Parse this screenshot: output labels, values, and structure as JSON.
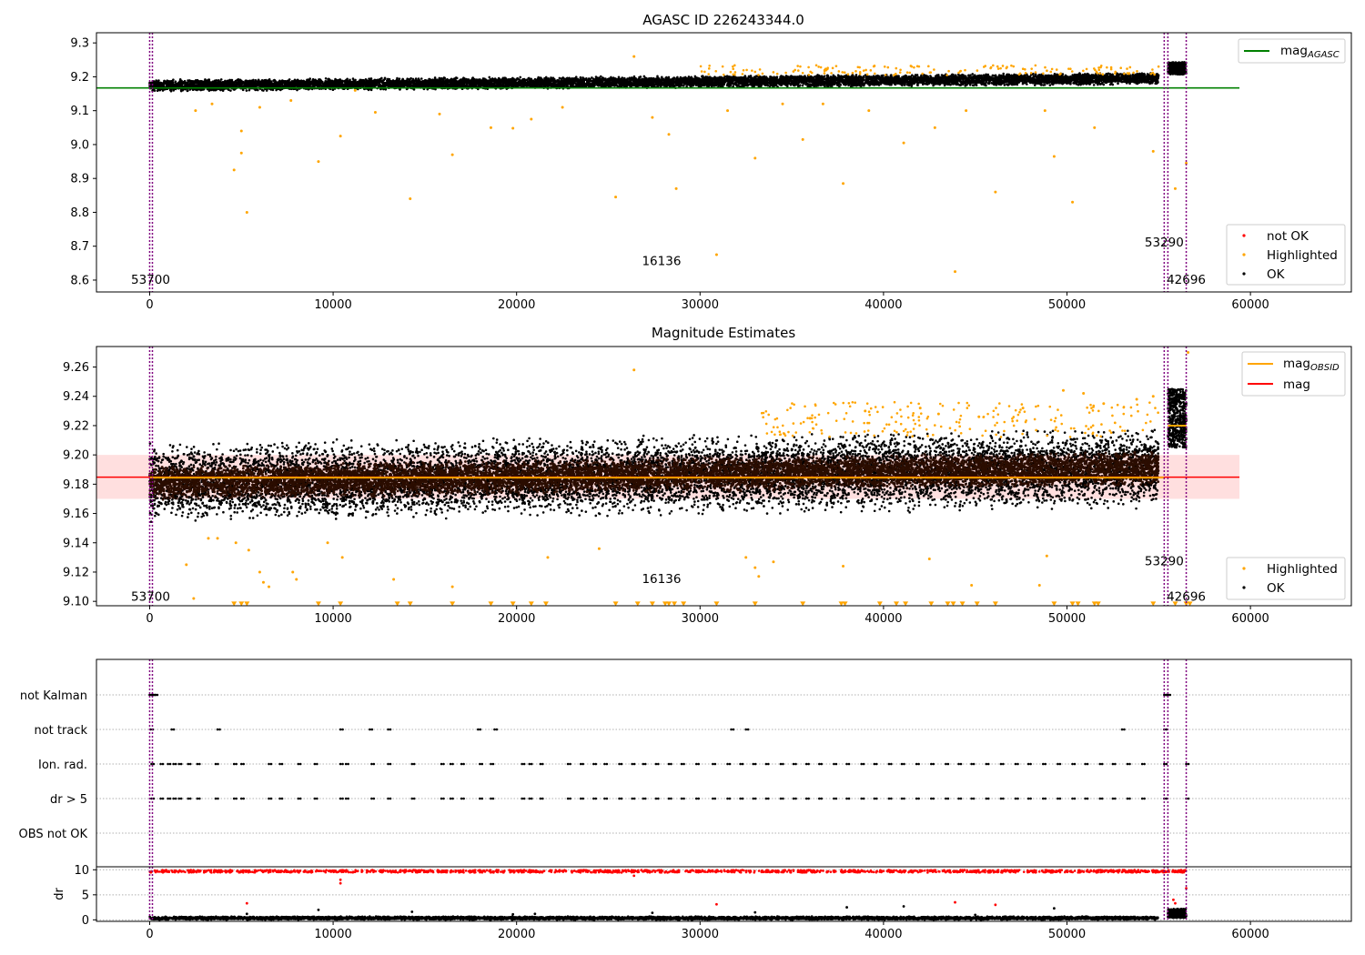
{
  "chart_data": [
    {
      "type": "scatter",
      "title": "AGASC ID 226243344.0",
      "xlim": [
        -2900,
        65500
      ],
      "ylim": [
        8.565,
        9.33
      ],
      "xticks": [
        0,
        10000,
        20000,
        30000,
        40000,
        50000,
        60000
      ],
      "xtick_labels": [
        "0",
        "10000",
        "20000",
        "30000",
        "40000",
        "50000",
        "60000"
      ],
      "yticks": [
        8.6,
        8.7,
        8.8,
        8.9,
        9.0,
        9.1,
        9.2,
        9.3
      ],
      "ytick_labels": [
        "8.6",
        "8.7",
        "8.8",
        "8.9",
        "9.0",
        "9.1",
        "9.2",
        "9.3"
      ],
      "reference_line": {
        "name": "mag_AGASC",
        "y": 9.167,
        "x": [
          -2900,
          59400
        ],
        "color": "#008000"
      },
      "vlines": [
        0,
        150,
        55300,
        55500,
        56500
      ],
      "dense_band": {
        "series": "OK",
        "start": [
          0,
          9.174
        ],
        "end": [
          55000,
          9.195
        ],
        "half_width": 0.018
      },
      "late_cluster": {
        "x": [
          55500,
          56500
        ],
        "y": 9.225,
        "half_width": 0.018
      },
      "series": [
        {
          "name": "not OK",
          "color": "#ff0000",
          "points": []
        },
        {
          "name": "Highlighted",
          "color": "#ffa500",
          "points": [
            [
              4600,
              8.925
            ],
            [
              5000,
              9.04
            ],
            [
              5000,
              8.975
            ],
            [
              5300,
              8.8
            ],
            [
              9200,
              8.95
            ],
            [
              10400,
              9.025
            ],
            [
              14200,
              8.84
            ],
            [
              16500,
              8.97
            ],
            [
              18600,
              9.05
            ],
            [
              19800,
              9.048
            ],
            [
              25400,
              8.845
            ],
            [
              26400,
              9.26
            ],
            [
              28300,
              9.03
            ],
            [
              28700,
              8.87
            ],
            [
              30900,
              8.675
            ],
            [
              33000,
              8.96
            ],
            [
              35600,
              9.015
            ],
            [
              37800,
              8.885
            ],
            [
              41100,
              9.005
            ],
            [
              43900,
              8.625
            ],
            [
              46100,
              8.86
            ],
            [
              49300,
              8.965
            ],
            [
              50300,
              8.83
            ],
            [
              54700,
              8.98
            ],
            [
              55900,
              8.87
            ],
            [
              56500,
              8.945
            ],
            [
              3400,
              9.12
            ],
            [
              6000,
              9.11
            ],
            [
              12300,
              9.095
            ],
            [
              20800,
              9.075
            ],
            [
              27400,
              9.08
            ],
            [
              39200,
              9.1
            ],
            [
              44500,
              9.1
            ],
            [
              51500,
              9.05
            ],
            [
              2500,
              9.1
            ],
            [
              7700,
              9.13
            ],
            [
              11200,
              9.16
            ],
            [
              15800,
              9.09
            ],
            [
              22500,
              9.11
            ],
            [
              31500,
              9.1
            ],
            [
              34500,
              9.12
            ],
            [
              36700,
              9.12
            ],
            [
              42800,
              9.05
            ],
            [
              48800,
              9.1
            ]
          ]
        },
        {
          "name": "OK",
          "color": "#000000",
          "points": []
        }
      ],
      "legend": [
        {
          "label": "mag",
          "sub": "AGASC",
          "kind": "line",
          "color": "#008000",
          "placement": "top-right"
        },
        {
          "label": "not OK",
          "kind": "dot",
          "color": "#ff0000",
          "placement": "lower-right"
        },
        {
          "label": "Highlighted",
          "kind": "dot",
          "color": "#ffa500",
          "placement": "lower-right"
        },
        {
          "label": "OK",
          "kind": "dot",
          "color": "#000000",
          "placement": "lower-right"
        }
      ],
      "annotations": [
        {
          "text": "53700",
          "x": 50,
          "y": 8.6
        },
        {
          "text": "16136",
          "x": 27900,
          "y": 8.655
        },
        {
          "text": "53290",
          "x": 55300,
          "y": 8.71
        },
        {
          "text": "42696",
          "x": 56500,
          "y": 8.6
        }
      ]
    },
    {
      "type": "scatter",
      "title": "Magnitude Estimates",
      "xlim": [
        -2900,
        65500
      ],
      "ylim": [
        9.097,
        9.274
      ],
      "xticks": [
        0,
        10000,
        20000,
        30000,
        40000,
        50000,
        60000
      ],
      "xtick_labels": [
        "0",
        "10000",
        "20000",
        "30000",
        "40000",
        "50000",
        "60000"
      ],
      "yticks": [
        9.1,
        9.12,
        9.14,
        9.16,
        9.18,
        9.2,
        9.22,
        9.24,
        9.26
      ],
      "ytick_labels": [
        "9.10",
        "9.12",
        "9.14",
        "9.16",
        "9.18",
        "9.20",
        "9.22",
        "9.24",
        "9.26"
      ],
      "mag_band": {
        "y": [
          9.17,
          9.2
        ],
        "x": [
          -2900,
          59400
        ],
        "color": "#ffc0c0"
      },
      "mag_line": {
        "name": "mag",
        "y": 9.1848,
        "x": [
          -2900,
          59400
        ],
        "color": "#ff0000"
      },
      "mag_obsid_segments": [
        {
          "x": [
            0,
            55300
          ],
          "y": 9.1845,
          "color": "#ffa500"
        },
        {
          "x": [
            55500,
            56500
          ],
          "y": 9.22,
          "color": "#ffa500"
        }
      ],
      "vlines": [
        0,
        150,
        55300,
        55500,
        56500
      ],
      "dense_band": {
        "series": "OK",
        "start": [
          0,
          9.181
        ],
        "end": [
          55000,
          9.191
        ],
        "core_half_width": 0.012,
        "scatter_half_width": 0.028
      },
      "late_cluster": {
        "x": [
          55500,
          56500
        ],
        "y": 9.225,
        "half_width": 0.02
      },
      "series": [
        {
          "name": "Highlighted",
          "color": "#ffa500",
          "points": [
            [
              26400,
              9.258
            ],
            [
              2000,
              9.125
            ],
            [
              3200,
              9.143
            ],
            [
              3700,
              9.143
            ],
            [
              4700,
              9.14
            ],
            [
              5400,
              9.135
            ],
            [
              6000,
              9.12
            ],
            [
              6200,
              9.113
            ],
            [
              7800,
              9.12
            ],
            [
              8000,
              9.115
            ],
            [
              9700,
              9.14
            ],
            [
              10500,
              9.13
            ],
            [
              13300,
              9.115
            ],
            [
              16500,
              9.11
            ],
            [
              21700,
              9.13
            ],
            [
              24500,
              9.136
            ],
            [
              32500,
              9.13
            ],
            [
              33000,
              9.123
            ],
            [
              33200,
              9.117
            ],
            [
              34000,
              9.127
            ],
            [
              37800,
              9.124
            ],
            [
              39000,
              9.23
            ],
            [
              42500,
              9.129
            ],
            [
              44800,
              9.111
            ],
            [
              48900,
              9.131
            ],
            [
              48500,
              9.111
            ],
            [
              42000,
              9.232
            ],
            [
              43000,
              9.228
            ],
            [
              45200,
              9.226
            ],
            [
              47600,
              9.232
            ],
            [
              49800,
              9.244
            ],
            [
              50900,
              9.242
            ],
            [
              52000,
              9.235
            ],
            [
              53800,
              9.238
            ],
            [
              54700,
              9.24
            ],
            [
              56600,
              9.27
            ],
            [
              2400,
              9.102
            ],
            [
              6500,
              9.11
            ],
            [
              36000,
              9.225
            ]
          ]
        },
        {
          "name": "OK",
          "color": "#000000",
          "points": []
        }
      ],
      "censored_markers": {
        "color": "#ffa500",
        "y": 9.098,
        "x": [
          4600,
          5000,
          5300,
          9200,
          10400,
          13500,
          14200,
          16500,
          18600,
          19800,
          20800,
          21600,
          25400,
          26600,
          27400,
          28100,
          28300,
          28600,
          29100,
          30900,
          33000,
          35600,
          37700,
          37900,
          39800,
          40700,
          41200,
          42600,
          43500,
          43800,
          44300,
          45100,
          46100,
          49300,
          50300,
          50600,
          51500,
          51700,
          54700,
          55900,
          56500,
          56700
        ]
      },
      "legend": [
        {
          "label": "mag",
          "sub": "OBSID",
          "kind": "line",
          "color": "#ffa500",
          "placement": "top-right"
        },
        {
          "label": "mag",
          "kind": "line",
          "color": "#ff0000",
          "placement": "top-right"
        },
        {
          "label": "Highlighted",
          "kind": "dot",
          "color": "#ffa500",
          "placement": "lower-right"
        },
        {
          "label": "OK",
          "kind": "dot",
          "color": "#000000",
          "placement": "lower-right"
        }
      ],
      "annotations": [
        {
          "text": "53700",
          "x": 50,
          "y": 9.103
        },
        {
          "text": "16136",
          "x": 27900,
          "y": 9.115
        },
        {
          "text": "53290",
          "x": 55300,
          "y": 9.127
        },
        {
          "text": "42696",
          "x": 56500,
          "y": 9.103
        }
      ]
    },
    {
      "type": "scatter",
      "title": "",
      "xlim": [
        -2900,
        65500
      ],
      "categories": [
        "not Kalman",
        "not track",
        "Ion. rad.",
        "dr > 5",
        "OBS not OK"
      ],
      "vlines": [
        0,
        150,
        55300,
        55500,
        56500
      ],
      "series": [
        {
          "name": "not Kalman",
          "color": "#000000",
          "x": [
            0,
            100,
            200,
            300,
            55300,
            55400,
            55500
          ]
        },
        {
          "name": "not track",
          "color": "#000000",
          "x": [
            50,
            1200,
            3700,
            10400,
            12000,
            13000,
            17900,
            18800,
            31700,
            32500,
            53000,
            55300
          ]
        },
        {
          "name": "Ion. rad.",
          "color": "#000000",
          "x": [
            100,
            600,
            1000,
            1300,
            1600,
            2100,
            2600,
            3600,
            4600,
            5000,
            6500,
            7100,
            8100,
            9000,
            10400,
            10700,
            12100,
            13000,
            14300,
            15900,
            16400,
            17000,
            18000,
            18600,
            20300,
            20700,
            21300,
            22800,
            23500,
            24200,
            24800,
            25600,
            26300,
            26900,
            27600,
            28300,
            29000,
            29800,
            30700,
            31500,
            32200,
            32900,
            33600,
            34400,
            35100,
            35800,
            36500,
            37300,
            38000,
            38800,
            39500,
            40300,
            41000,
            41800,
            42600,
            43400,
            44100,
            44800,
            45600,
            46400,
            47200,
            47900,
            48700,
            49500,
            50300,
            51000,
            51800,
            52500,
            53300,
            54100,
            55300,
            56500
          ]
        },
        {
          "name": "dr > 5",
          "color": "#000000",
          "x": [
            100,
            600,
            1000,
            1300,
            1600,
            2100,
            2600,
            3600,
            4600,
            5000,
            6500,
            7100,
            8100,
            9000,
            10400,
            10700,
            12100,
            13000,
            14300,
            15900,
            16400,
            17000,
            18000,
            18600,
            20300,
            20700,
            21300,
            22800,
            23500,
            24200,
            24800,
            25600,
            26300,
            26900,
            27600,
            28300,
            29000,
            29800,
            30700,
            31500,
            32200,
            32900,
            33600,
            34400,
            35100,
            35800,
            36500,
            37300,
            38000,
            38800,
            39500,
            40300,
            41000,
            41800,
            42600,
            43400,
            44100,
            44800,
            45600,
            46400,
            47200,
            47900,
            48700,
            49500,
            50300,
            51000,
            51800,
            52500,
            53300,
            54100,
            55300,
            56500
          ]
        },
        {
          "name": "OBS not OK",
          "color": "#000000",
          "x": []
        }
      ]
    },
    {
      "type": "scatter",
      "title": "",
      "ylabel": "dr",
      "xlim": [
        -2900,
        65500
      ],
      "ylim": [
        -0.3,
        10.6
      ],
      "xticks": [
        0,
        10000,
        20000,
        30000,
        40000,
        50000,
        60000
      ],
      "xtick_labels": [
        "0",
        "10000",
        "20000",
        "30000",
        "40000",
        "50000",
        "60000"
      ],
      "yticks": [
        0,
        5,
        10
      ],
      "ytick_labels": [
        "0",
        "5",
        "10"
      ],
      "vlines": [
        0,
        150,
        55300,
        55500,
        56500
      ],
      "dense_band": {
        "series": "ok",
        "start": [
          0,
          0.35
        ],
        "end": [
          55000,
          0.35
        ],
        "half_width": 0.35
      },
      "late_cluster": {
        "x": [
          55500,
          56500
        ],
        "y": 1.3,
        "half_width": 0.9
      },
      "series": [
        {
          "name": "ok",
          "color": "#000000",
          "points": [
            [
              5300,
              1.2
            ],
            [
              9200,
              2.0
            ],
            [
              14300,
              1.6
            ],
            [
              19800,
              1.1
            ],
            [
              27400,
              1.4
            ],
            [
              33000,
              1.5
            ],
            [
              41100,
              2.7
            ],
            [
              45000,
              1.0
            ],
            [
              49300,
              2.3
            ],
            [
              38000,
              2.5
            ],
            [
              21000,
              1.2
            ]
          ]
        },
        {
          "name": "not ok",
          "color": "#ff0000",
          "points": [
            [
              5300,
              3.3
            ],
            [
              10400,
              7.3
            ],
            [
              10400,
              8.0
            ],
            [
              26400,
              8.8
            ],
            [
              30900,
              3.1
            ],
            [
              43900,
              3.5
            ],
            [
              46100,
              3.0
            ],
            [
              56500,
              6.3
            ],
            [
              55900,
              3.3
            ],
            [
              55800,
              4.0
            ]
          ]
        },
        {
          "name": "not ok high",
          "color": "#ff0000",
          "y": 9.7,
          "x_start": 0,
          "x_end": 56500
        }
      ]
    }
  ]
}
